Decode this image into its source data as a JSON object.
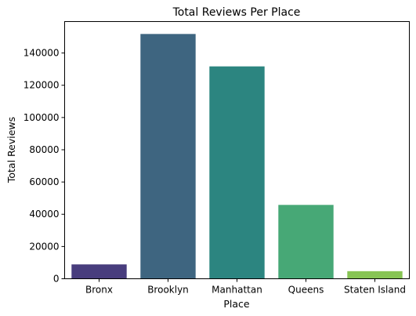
{
  "chart_data": {
    "type": "bar",
    "title": "Total Reviews Per Place",
    "xlabel": "Place",
    "ylabel": "Total Reviews",
    "categories": [
      "Bronx",
      "Brooklyn",
      "Manhattan",
      "Queens",
      "Staten Island"
    ],
    "values": [
      8900,
      151800,
      131700,
      45800,
      4700
    ],
    "colors": [
      "#483d7d",
      "#3e6580",
      "#2c8580",
      "#47a876",
      "#87c454"
    ],
    "ylim": [
      0,
      159500
    ],
    "yticks": [
      0,
      20000,
      40000,
      60000,
      80000,
      100000,
      120000,
      140000
    ],
    "ytick_labels": [
      "0",
      "20000",
      "40000",
      "60000",
      "80000",
      "100000",
      "120000",
      "140000"
    ],
    "grid": false,
    "legend": "none"
  }
}
